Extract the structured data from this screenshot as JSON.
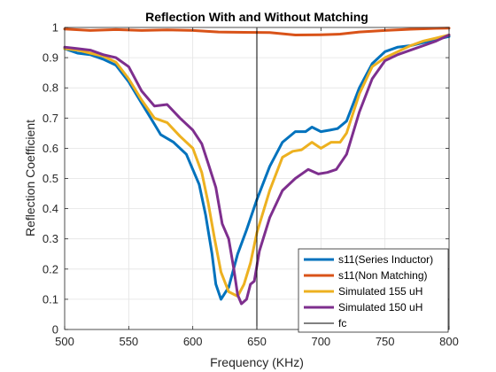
{
  "chart_data": {
    "type": "line",
    "title": "Reflection With and Without Matching",
    "xlabel": "Frequency (KHz)",
    "ylabel": "Reflection Coefficient",
    "xlim": [
      500,
      800
    ],
    "ylim": [
      0,
      1
    ],
    "xticks": [
      500,
      550,
      600,
      650,
      700,
      750,
      800
    ],
    "yticks": [
      0,
      0.1,
      0.2,
      0.3,
      0.4,
      0.5,
      0.6,
      0.7,
      0.8,
      0.9,
      1
    ],
    "grid": true,
    "legend_position": "bottom-right",
    "series": [
      {
        "name": "s11(Series Inductor)",
        "color": "#0072BD",
        "points": [
          [
            500,
            0.93
          ],
          [
            510,
            0.915
          ],
          [
            520,
            0.91
          ],
          [
            530,
            0.895
          ],
          [
            540,
            0.875
          ],
          [
            550,
            0.82
          ],
          [
            560,
            0.75
          ],
          [
            570,
            0.68
          ],
          [
            575,
            0.645
          ],
          [
            585,
            0.62
          ],
          [
            595,
            0.58
          ],
          [
            605,
            0.48
          ],
          [
            610,
            0.38
          ],
          [
            615,
            0.25
          ],
          [
            618,
            0.15
          ],
          [
            622,
            0.1
          ],
          [
            628,
            0.14
          ],
          [
            635,
            0.25
          ],
          [
            642,
            0.33
          ],
          [
            650,
            0.43
          ],
          [
            660,
            0.54
          ],
          [
            670,
            0.62
          ],
          [
            680,
            0.655
          ],
          [
            688,
            0.655
          ],
          [
            693,
            0.67
          ],
          [
            700,
            0.655
          ],
          [
            707,
            0.66
          ],
          [
            713,
            0.665
          ],
          [
            720,
            0.69
          ],
          [
            730,
            0.8
          ],
          [
            740,
            0.88
          ],
          [
            750,
            0.92
          ],
          [
            760,
            0.935
          ],
          [
            770,
            0.94
          ],
          [
            780,
            0.95
          ],
          [
            790,
            0.96
          ],
          [
            800,
            0.97
          ]
        ]
      },
      {
        "name": "s11(Non Matching)",
        "color": "#D95319",
        "points": [
          [
            500,
            0.995
          ],
          [
            520,
            0.99
          ],
          [
            540,
            0.993
          ],
          [
            560,
            0.99
          ],
          [
            580,
            0.992
          ],
          [
            600,
            0.99
          ],
          [
            620,
            0.985
          ],
          [
            640,
            0.984
          ],
          [
            660,
            0.983
          ],
          [
            680,
            0.975
          ],
          [
            700,
            0.976
          ],
          [
            715,
            0.978
          ],
          [
            730,
            0.985
          ],
          [
            750,
            0.99
          ],
          [
            770,
            0.994
          ],
          [
            790,
            0.997
          ],
          [
            800,
            0.998
          ]
        ]
      },
      {
        "name": "Simulated 155 uH",
        "color": "#EDB120",
        "points": [
          [
            500,
            0.93
          ],
          [
            510,
            0.925
          ],
          [
            520,
            0.915
          ],
          [
            530,
            0.905
          ],
          [
            540,
            0.885
          ],
          [
            550,
            0.83
          ],
          [
            560,
            0.76
          ],
          [
            570,
            0.7
          ],
          [
            580,
            0.685
          ],
          [
            590,
            0.64
          ],
          [
            600,
            0.6
          ],
          [
            607,
            0.52
          ],
          [
            612,
            0.42
          ],
          [
            617,
            0.3
          ],
          [
            622,
            0.19
          ],
          [
            628,
            0.125
          ],
          [
            635,
            0.11
          ],
          [
            640,
            0.15
          ],
          [
            645,
            0.22
          ],
          [
            650,
            0.32
          ],
          [
            660,
            0.46
          ],
          [
            670,
            0.57
          ],
          [
            678,
            0.59
          ],
          [
            685,
            0.595
          ],
          [
            693,
            0.62
          ],
          [
            700,
            0.6
          ],
          [
            708,
            0.62
          ],
          [
            715,
            0.62
          ],
          [
            720,
            0.65
          ],
          [
            730,
            0.78
          ],
          [
            740,
            0.87
          ],
          [
            750,
            0.9
          ],
          [
            760,
            0.92
          ],
          [
            770,
            0.94
          ],
          [
            780,
            0.955
          ],
          [
            790,
            0.965
          ],
          [
            800,
            0.975
          ]
        ]
      },
      {
        "name": "Simulated 150 uH",
        "color": "#7E2F8E",
        "points": [
          [
            500,
            0.935
          ],
          [
            510,
            0.93
          ],
          [
            520,
            0.925
          ],
          [
            530,
            0.91
          ],
          [
            540,
            0.9
          ],
          [
            550,
            0.87
          ],
          [
            560,
            0.79
          ],
          [
            570,
            0.74
          ],
          [
            580,
            0.745
          ],
          [
            590,
            0.7
          ],
          [
            600,
            0.66
          ],
          [
            607,
            0.615
          ],
          [
            612,
            0.55
          ],
          [
            618,
            0.47
          ],
          [
            623,
            0.35
          ],
          [
            628,
            0.3
          ],
          [
            632,
            0.2
          ],
          [
            635,
            0.115
          ],
          [
            638,
            0.085
          ],
          [
            642,
            0.1
          ],
          [
            645,
            0.15
          ],
          [
            648,
            0.16
          ],
          [
            652,
            0.26
          ],
          [
            660,
            0.37
          ],
          [
            670,
            0.46
          ],
          [
            680,
            0.5
          ],
          [
            690,
            0.53
          ],
          [
            698,
            0.515
          ],
          [
            705,
            0.52
          ],
          [
            712,
            0.53
          ],
          [
            720,
            0.58
          ],
          [
            730,
            0.72
          ],
          [
            740,
            0.83
          ],
          [
            750,
            0.89
          ],
          [
            760,
            0.91
          ],
          [
            770,
            0.925
          ],
          [
            780,
            0.94
          ],
          [
            790,
            0.955
          ],
          [
            800,
            0.975
          ]
        ]
      }
    ],
    "vline": {
      "name": "fc",
      "x": 650,
      "color": "#000000"
    }
  }
}
